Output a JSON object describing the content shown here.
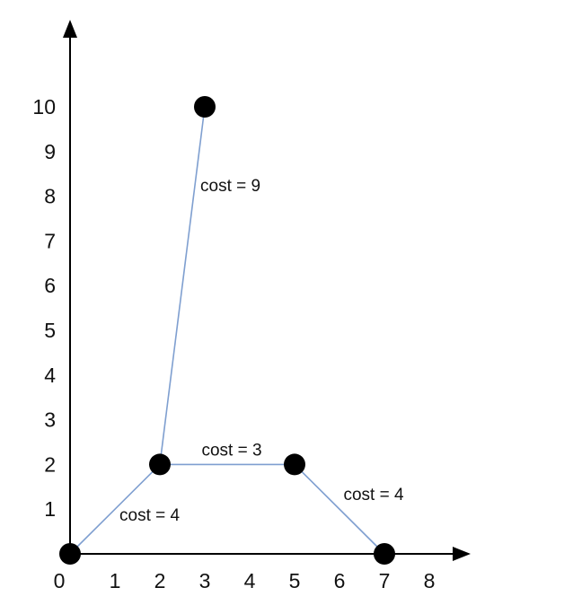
{
  "chart_data": {
    "type": "graph",
    "title": "",
    "xlabel": "",
    "ylabel": "",
    "xlim": [
      0,
      8
    ],
    "ylim": [
      0,
      10
    ],
    "x_ticks": [
      "0",
      "1",
      "2",
      "3",
      "4",
      "5",
      "6",
      "7",
      "8"
    ],
    "y_ticks": [
      "1",
      "2",
      "3",
      "4",
      "5",
      "6",
      "7",
      "8",
      "9",
      "10"
    ],
    "grid": false,
    "legend": "none",
    "node_color": "#000000",
    "edge_color": "#7f9fd0",
    "axis_color": "#000000",
    "nodes": [
      {
        "x": 0,
        "y": 0
      },
      {
        "x": 2,
        "y": 2
      },
      {
        "x": 3,
        "y": 10
      },
      {
        "x": 5,
        "y": 2
      },
      {
        "x": 7,
        "y": 0
      }
    ],
    "edges": [
      {
        "from": 0,
        "to": 1,
        "label": "cost = 4"
      },
      {
        "from": 1,
        "to": 2,
        "label": "cost = 9"
      },
      {
        "from": 1,
        "to": 3,
        "label": "cost = 3"
      },
      {
        "from": 3,
        "to": 4,
        "label": "cost = 4"
      }
    ]
  }
}
